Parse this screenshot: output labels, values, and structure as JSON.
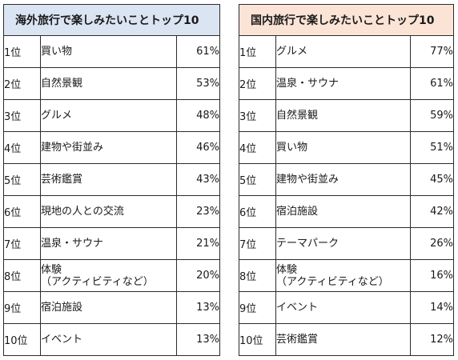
{
  "overseas": {
    "title": "海外旅行で楽しみたいことトップ10",
    "header_color": "#dbe4f3",
    "rows": [
      {
        "rank": "1位",
        "item": "買い物",
        "pct": "61%"
      },
      {
        "rank": "2位",
        "item": "自然景観",
        "pct": "53%"
      },
      {
        "rank": "3位",
        "item": "グルメ",
        "pct": "48%"
      },
      {
        "rank": "4位",
        "item": "建物や街並み",
        "pct": "46%"
      },
      {
        "rank": "5位",
        "item": "芸術鑑賞",
        "pct": "43%"
      },
      {
        "rank": "6位",
        "item": "現地の人との交流",
        "pct": "23%"
      },
      {
        "rank": "7位",
        "item": "温泉・サウナ",
        "pct": "21%"
      },
      {
        "rank": "8位",
        "item": "体験",
        "item_sub": "（アクティビティなど）",
        "pct": "20%"
      },
      {
        "rank": "9位",
        "item": "宿泊施設",
        "pct": "13%"
      },
      {
        "rank": "10位",
        "item": "イベント",
        "pct": "13%"
      }
    ]
  },
  "domestic": {
    "title": "国内旅行で楽しみたいことトップ10",
    "header_color": "#fbe4d6",
    "rows": [
      {
        "rank": "1位",
        "item": "グルメ",
        "pct": "77%"
      },
      {
        "rank": "2位",
        "item": "温泉・サウナ",
        "pct": "61%"
      },
      {
        "rank": "3位",
        "item": "自然景観",
        "pct": "59%"
      },
      {
        "rank": "4位",
        "item": "買い物",
        "pct": "51%"
      },
      {
        "rank": "5位",
        "item": "建物や街並み",
        "pct": "45%"
      },
      {
        "rank": "6位",
        "item": "宿泊施設",
        "pct": "42%"
      },
      {
        "rank": "7位",
        "item": "テーマパーク",
        "pct": "26%"
      },
      {
        "rank": "8位",
        "item": "体験",
        "item_sub": "（アクティビティなど）",
        "pct": "16%"
      },
      {
        "rank": "9位",
        "item": "イベント",
        "pct": "14%"
      },
      {
        "rank": "10位",
        "item": "芸術鑑賞",
        "pct": "12%"
      }
    ]
  }
}
